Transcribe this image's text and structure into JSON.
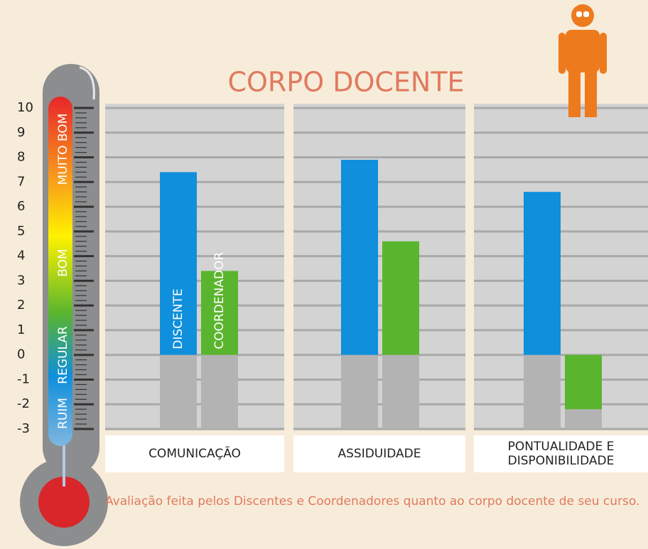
{
  "chart_data": {
    "type": "bar",
    "title": "CORPO DOCENTE",
    "categories": [
      "COMUNICAÇÃO",
      "ASSIDUIDADE",
      "PONTUALIDADE E DISPONIBILIDADE"
    ],
    "series": [
      {
        "name": "DISCENTE",
        "color": "#0f8fdc",
        "values": [
          7.4,
          7.9,
          6.6
        ]
      },
      {
        "name": "COORDENADOR",
        "color": "#5ab52e",
        "values": [
          3.4,
          4.6,
          -2.2
        ]
      }
    ],
    "ylim": [
      -3,
      10
    ],
    "yticks": [
      -3,
      -2,
      -1,
      0,
      1,
      2,
      3,
      4,
      5,
      6,
      7,
      8,
      9,
      10
    ],
    "grid": true,
    "scale_labels": [
      "RUIM",
      "REGULAR",
      "BOM",
      "MUITO BOM"
    ],
    "note": "Avaliação feita pelos Discentes e Coordenadores quanto ao corpo docente de seu curso."
  }
}
